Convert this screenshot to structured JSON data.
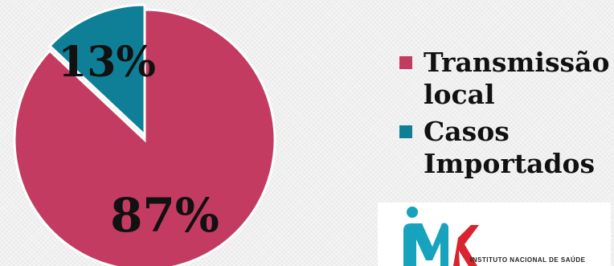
{
  "chart_data": {
    "type": "pie",
    "slices": [
      {
        "name": "Transmissão local",
        "value": 87,
        "label": "87%",
        "color": "#c43b61"
      },
      {
        "name": "Casos Importados",
        "value": 13,
        "label": "13%",
        "color": "#0e7f96"
      }
    ],
    "legend": {
      "placement": "right",
      "entries": [
        {
          "line1": "Transmissão",
          "line2": "local",
          "color": "#c43b61"
        },
        {
          "line1": "Casos",
          "line2": "Importados",
          "color": "#0e7f96"
        }
      ]
    }
  },
  "logo": {
    "text": "INSTITUTO NACIONAL DE SAÚDE",
    "colors": {
      "teal": "#17a3bd",
      "red": "#d8242f"
    }
  }
}
